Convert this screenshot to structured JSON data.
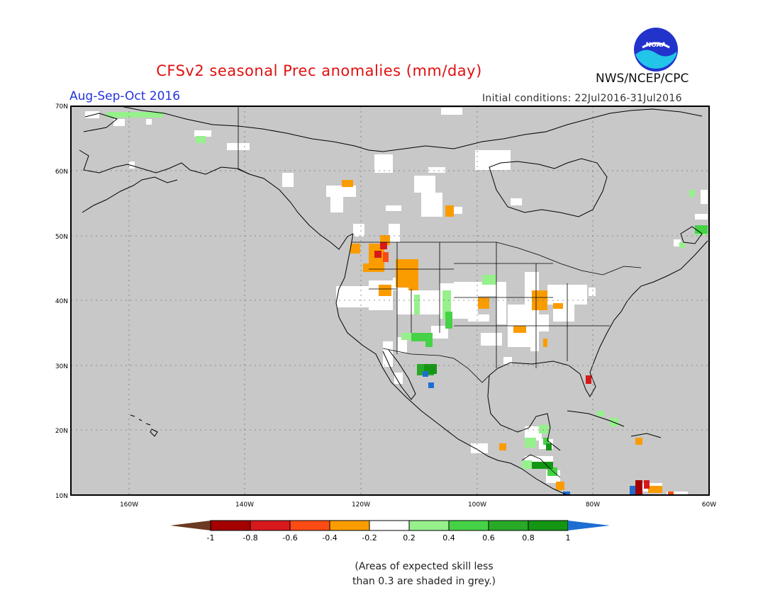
{
  "title": "CFSv2 seasonal Prec anomalies (mm/day)",
  "subtitle": "Aug-Sep-Oct 2016",
  "initial_conditions": "Initial conditions: 22Jul2016-31Jul2016",
  "organization": "NWS/NCEP/CPC",
  "logo_text": "NOAA",
  "map": {
    "lat_labels": [
      "70N",
      "60N",
      "50N",
      "40N",
      "30N",
      "20N",
      "10N"
    ],
    "lon_labels": [
      "160W",
      "140W",
      "120W",
      "100W",
      "80W",
      "60W"
    ],
    "colors": {
      "grey": "#c8c8c8",
      "dark_red": "#a50000",
      "red": "#d7191c",
      "orange_red": "#fa4c14",
      "orange": "#fa9c00",
      "white": "#ffffff",
      "light_green": "#96f08c",
      "green": "#46d246",
      "mid_green": "#28aa28",
      "dark_green": "#149614",
      "blue": "#1e6ed2",
      "brown": "#6b3a21"
    }
  },
  "colorbar": {
    "labels": [
      "-1",
      "-0.8",
      "-0.6",
      "-0.4",
      "-0.2",
      "0.2",
      "0.4",
      "0.6",
      "0.8",
      "1"
    ],
    "colors": [
      "#a50000",
      "#d7191c",
      "#fa4c14",
      "#fa9c00",
      "#ffffff",
      "#96f08c",
      "#46d246",
      "#28aa28",
      "#149614"
    ],
    "low_end_color": "#6b3a21",
    "high_end_color": "#1e6ed2"
  },
  "note_lines": [
    "(Areas of expected skill less",
    "than 0.3 are shaded in grey.)"
  ]
}
